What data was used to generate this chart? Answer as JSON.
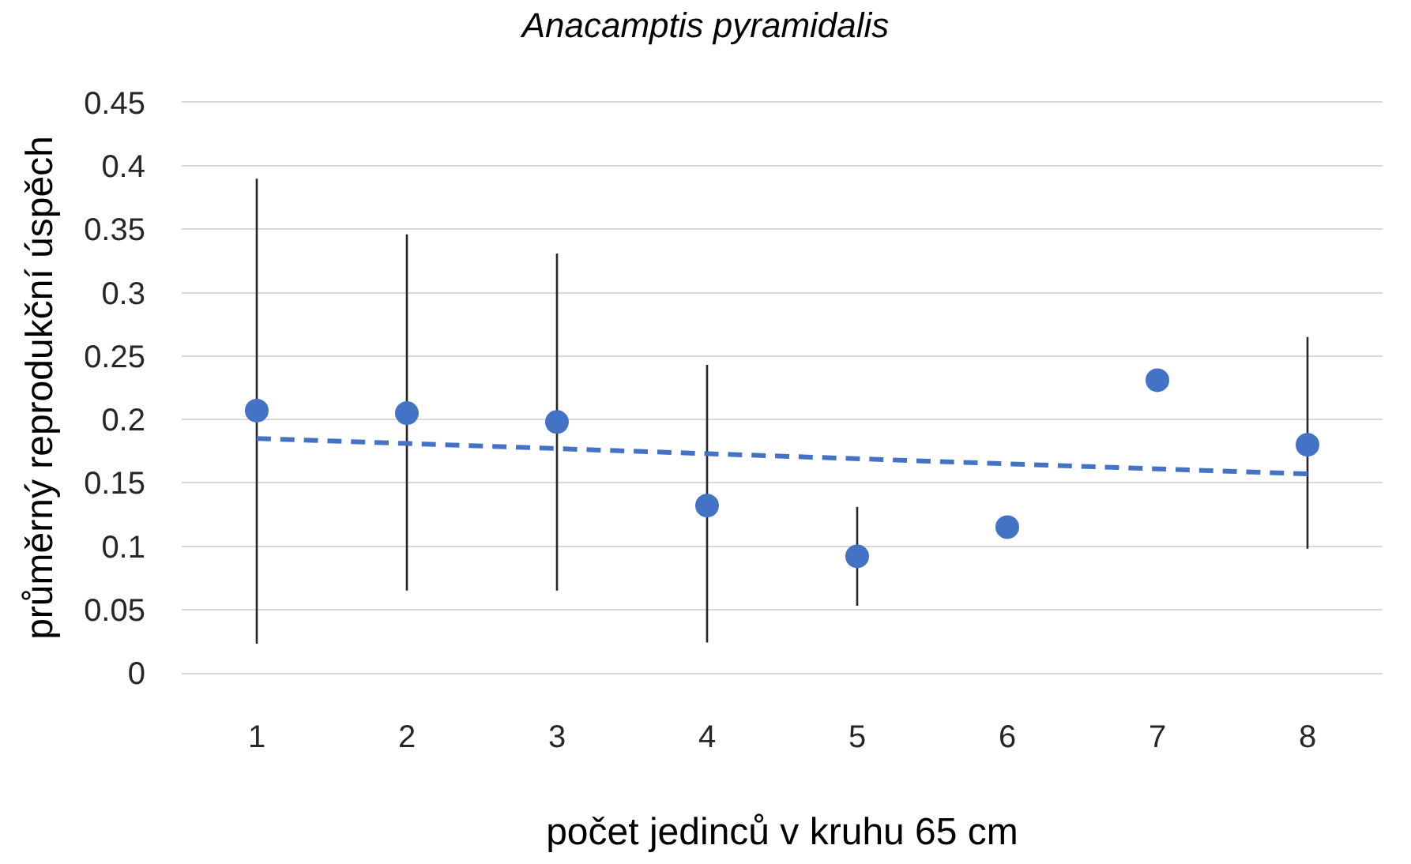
{
  "chart_data": {
    "type": "scatter",
    "title": "Anacamptis pyramidalis",
    "xlabel": "počet jedinců v kruhu 65 cm",
    "ylabel": "průměrný reprodukční úspěch",
    "x": [
      1,
      2,
      3,
      4,
      5,
      6,
      7,
      8
    ],
    "xlim": [
      0.5,
      8.5
    ],
    "xticks": [
      1,
      2,
      3,
      4,
      5,
      6,
      7,
      8
    ],
    "ylim": [
      0,
      0.45
    ],
    "yticks": [
      0,
      0.05,
      0.1,
      0.15,
      0.2,
      0.25,
      0.3,
      0.35,
      0.4,
      0.45
    ],
    "grid": "y",
    "marker": "circle",
    "series": [
      {
        "color": "#4472c4",
        "values": [
          0.207,
          0.205,
          0.198,
          0.132,
          0.092,
          0.115,
          0.231,
          0.18
        ],
        "errors": [
          [
            0.023,
            0.39
          ],
          [
            0.065,
            0.346
          ],
          [
            0.065,
            0.331
          ],
          [
            0.024,
            0.243
          ],
          [
            0.053,
            0.131
          ],
          null,
          null,
          [
            0.098,
            0.265
          ]
        ]
      },
      {
        "type": "line",
        "x": [
          1,
          8
        ],
        "values": [
          0.185,
          0.157
        ],
        "color": "#4472c4",
        "line_style": "dashed",
        "marker": "none"
      }
    ]
  }
}
